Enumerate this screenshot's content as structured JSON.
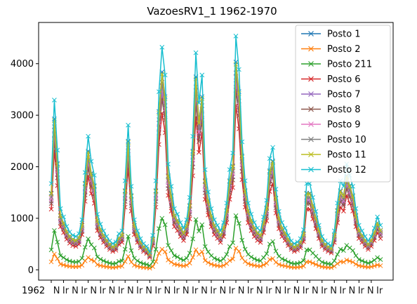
{
  "chart_data": {
    "type": "line",
    "title": "VazoesRV1_1 1962-1970",
    "xlabel": "",
    "ylabel": "",
    "ylim": [
      -200,
      4800
    ],
    "yticks": [
      0,
      1000,
      2000,
      3000,
      4000
    ],
    "grid": false,
    "legend_position": "top-right",
    "marker": "x",
    "x_tick_labels_note": "crowded overlapping tick labels starting with 1962",
    "x_first_tick_label": "1962",
    "x": [
      "1962-01",
      "1962-02",
      "1962-03",
      "1962-04",
      "1962-05",
      "1962-06",
      "1962-07",
      "1962-08",
      "1962-09",
      "1962-10",
      "1962-11",
      "1962-12",
      "1963-01",
      "1963-02",
      "1963-03",
      "1963-04",
      "1963-05",
      "1963-06",
      "1963-07",
      "1963-08",
      "1963-09",
      "1963-10",
      "1963-11",
      "1963-12",
      "1964-01",
      "1964-02",
      "1964-03",
      "1964-04",
      "1964-05",
      "1964-06",
      "1964-07",
      "1964-08",
      "1964-09",
      "1964-10",
      "1964-11",
      "1964-12",
      "1965-01",
      "1965-02",
      "1965-03",
      "1965-04",
      "1965-05",
      "1965-06",
      "1965-07",
      "1965-08",
      "1965-09",
      "1965-10",
      "1965-11",
      "1965-12",
      "1966-01",
      "1966-02",
      "1966-03",
      "1966-04",
      "1966-05",
      "1966-06",
      "1966-07",
      "1966-08",
      "1966-09",
      "1966-10",
      "1966-11",
      "1966-12",
      "1967-01",
      "1967-02",
      "1967-03",
      "1967-04",
      "1967-05",
      "1967-06",
      "1967-07",
      "1967-08",
      "1967-09",
      "1967-10",
      "1967-11",
      "1967-12",
      "1968-01",
      "1968-02",
      "1968-03",
      "1968-04",
      "1968-05",
      "1968-06",
      "1968-07",
      "1968-08",
      "1968-09",
      "1968-10",
      "1968-11",
      "1968-12",
      "1969-01",
      "1969-02",
      "1969-03",
      "1969-04",
      "1969-05",
      "1969-06",
      "1969-07",
      "1969-08",
      "1969-09",
      "1969-10",
      "1969-11",
      "1969-12",
      "1970-01",
      "1970-02",
      "1970-03",
      "1970-04",
      "1970-05",
      "1970-06",
      "1970-07",
      "1970-08",
      "1970-09",
      "1970-10",
      "1970-11",
      "1970-12"
    ],
    "base_profile": [
      1550,
      3050,
      2150,
      1100,
      950,
      780,
      680,
      620,
      600,
      650,
      900,
      1750,
      2400,
      1950,
      1700,
      1000,
      820,
      700,
      600,
      520,
      470,
      500,
      650,
      700,
      1600,
      2600,
      1500,
      900,
      700,
      560,
      470,
      420,
      320,
      620,
      1600,
      3200,
      4000,
      3500,
      1900,
      1500,
      1100,
      1000,
      850,
      750,
      900,
      1300,
      2400,
      3900,
      3000,
      3500,
      1800,
      1400,
      1100,
      900,
      800,
      700,
      850,
      1200,
      1800,
      2100,
      4200,
      3600,
      2300,
      1600,
      1200,
      1000,
      850,
      750,
      700,
      950,
      1250,
      2000,
      2200,
      1450,
      1050,
      850,
      750,
      620,
      520,
      470,
      500,
      560,
      720,
      1550,
      1550,
      1300,
      1050,
      800,
      600,
      520,
      470,
      430,
      700,
      1200,
      1600,
      1500,
      1900,
      1700,
      1500,
      1100,
      800,
      700,
      600,
      520,
      600,
      750,
      950,
      800
    ],
    "series": [
      {
        "name": "Posto 1",
        "color": "#1f77b4",
        "scale": 0.96
      },
      {
        "name": "Posto 2",
        "color": "#ff7f0e",
        "scale": 0.1
      },
      {
        "name": "Posto 211",
        "color": "#2ca02c",
        "scale": 0.25
      },
      {
        "name": "Posto 6",
        "color": "#d62728",
        "scale": 0.76
      },
      {
        "name": "Posto 7",
        "color": "#9467bd",
        "scale": 0.86
      },
      {
        "name": "Posto 8",
        "color": "#8c564b",
        "scale": 0.83
      },
      {
        "name": "Posto 9",
        "color": "#e377c2",
        "scale": 0.89
      },
      {
        "name": "Posto 10",
        "color": "#7f7f7f",
        "scale": 0.91
      },
      {
        "name": "Posto 11",
        "color": "#bcbd22",
        "scale": 0.95
      },
      {
        "name": "Posto 12",
        "color": "#17becf",
        "scale": 1.08
      }
    ]
  }
}
